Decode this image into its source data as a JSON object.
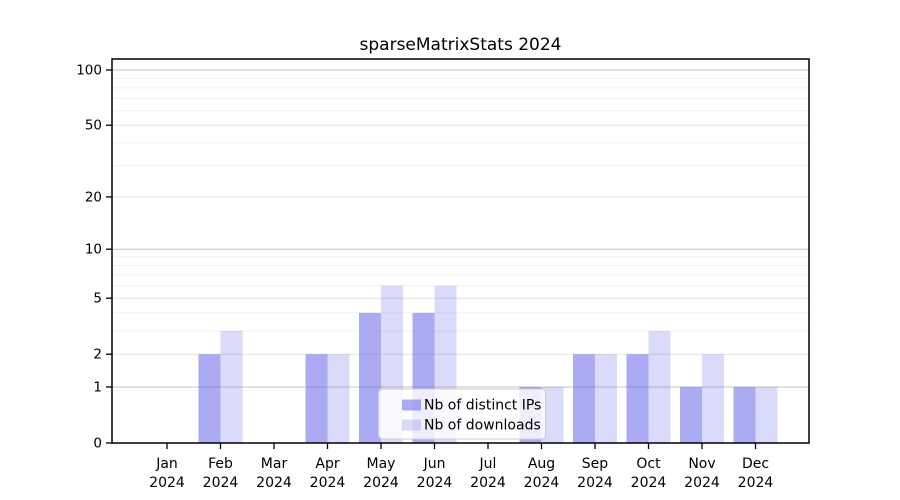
{
  "title": "sparseMatrixStats 2024",
  "chart_data": {
    "type": "bar",
    "title": "sparseMatrixStats 2024",
    "categories": [
      "Jan",
      "Feb",
      "Mar",
      "Apr",
      "May",
      "Jun",
      "Jul",
      "Aug",
      "Sep",
      "Oct",
      "Nov",
      "Dec"
    ],
    "x_sublabel": "2024",
    "series": [
      {
        "name": "Nb of distinct IPs",
        "color": "rgba(85,88,232,0.50)",
        "values": [
          0,
          2,
          0,
          2,
          4,
          4,
          0,
          1,
          2,
          2,
          1,
          1
        ]
      },
      {
        "name": "Nb of downloads",
        "color": "rgba(85,88,232,0.22)",
        "values": [
          0,
          3,
          0,
          2,
          6,
          6,
          0,
          1,
          2,
          3,
          2,
          1
        ]
      }
    ],
    "y_axis": {
      "scale": "log1p",
      "ticks": [
        {
          "value": 0,
          "label": "0"
        },
        {
          "value": 1,
          "label": "1"
        },
        {
          "value": 2,
          "label": "2"
        },
        {
          "value": 5,
          "label": "5"
        },
        {
          "value": 10,
          "label": "10"
        },
        {
          "value": 20,
          "label": "20"
        },
        {
          "value": 50,
          "label": "50"
        },
        {
          "value": 100,
          "label": "100"
        }
      ],
      "minor_gridlines": [
        3,
        4,
        6,
        7,
        8,
        9,
        30,
        40,
        60,
        70,
        80,
        90
      ],
      "ylim": [
        0,
        115
      ],
      "grid": "on"
    },
    "legend": {
      "position": "bottom-center",
      "entries": [
        "Nb of distinct IPs",
        "Nb of downloads"
      ]
    }
  },
  "colors": {
    "bar_distinct_ips": "rgba(85,88,232,0.50)",
    "bar_downloads": "rgba(85,88,232,0.22)",
    "decade_grid": "#c6c6c6",
    "labeled_grid": "#e2e2e2",
    "minor_grid": "#f1f1f1",
    "axis": "#000000",
    "text": "#000000",
    "legend_border": "#cccccc",
    "legend_bg": "rgba(255,255,255,0.8)",
    "background": "#ffffff"
  }
}
